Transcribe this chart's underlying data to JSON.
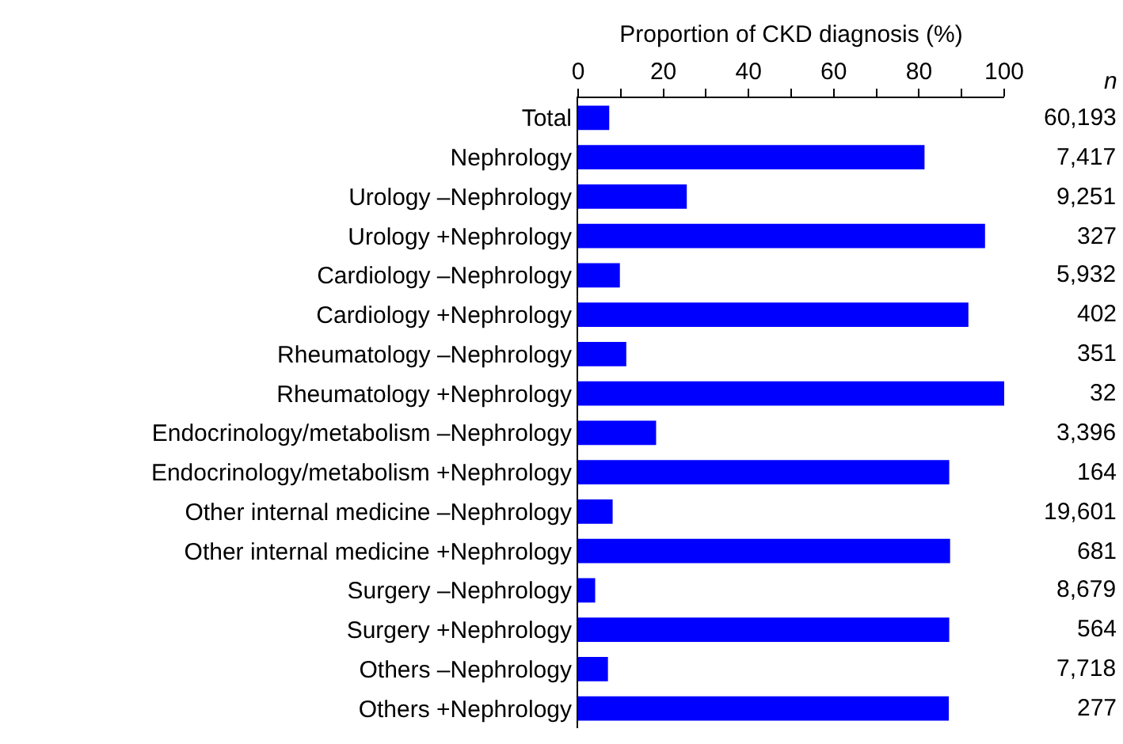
{
  "chart_data": {
    "type": "bar",
    "orientation": "horizontal",
    "xlabel": "Proportion of CKD diagnosis (%)",
    "categories": [
      "Total",
      "Nephrology",
      "Urology –Nephrology",
      "Urology +Nephrology",
      "Cardiology –Nephrology",
      "Cardiology +Nephrology",
      "Rheumatology –Nephrology",
      "Rheumatology +Nephrology",
      "Endocrinology/metabolism –Nephrology",
      "Endocrinology/metabolism +Nephrology",
      "Other internal medicine –Nephrology",
      "Other internal medicine +Nephrology",
      "Surgery –Nephrology",
      "Surgery +Nephrology",
      "Others –Nephrology",
      "Others +Nephrology"
    ],
    "values": [
      7.3,
      81.3,
      25.5,
      95.5,
      9.8,
      91.6,
      11.3,
      100,
      18.3,
      87.1,
      8.1,
      87.3,
      4,
      87.1,
      7,
      87
    ],
    "color": "#0000ff",
    "xlim": [
      0,
      100
    ],
    "xticks": [
      0,
      {
        "value": 10,
        "label": null
      },
      20,
      {
        "value": 30,
        "label": null
      },
      40,
      {
        "value": 50,
        "label": null
      },
      60,
      {
        "value": 70,
        "label": null
      },
      80,
      {
        "value": 90,
        "label": null
      },
      100
    ],
    "grid": false,
    "legend": false,
    "annotations": [
      "n",
      "60,193",
      "7,417",
      "9,251",
      "327",
      "5,932",
      "402",
      "351",
      "32",
      "3,396",
      "164",
      "19,601",
      "681",
      "8,679",
      "564",
      "7,718",
      "277"
    ]
  }
}
